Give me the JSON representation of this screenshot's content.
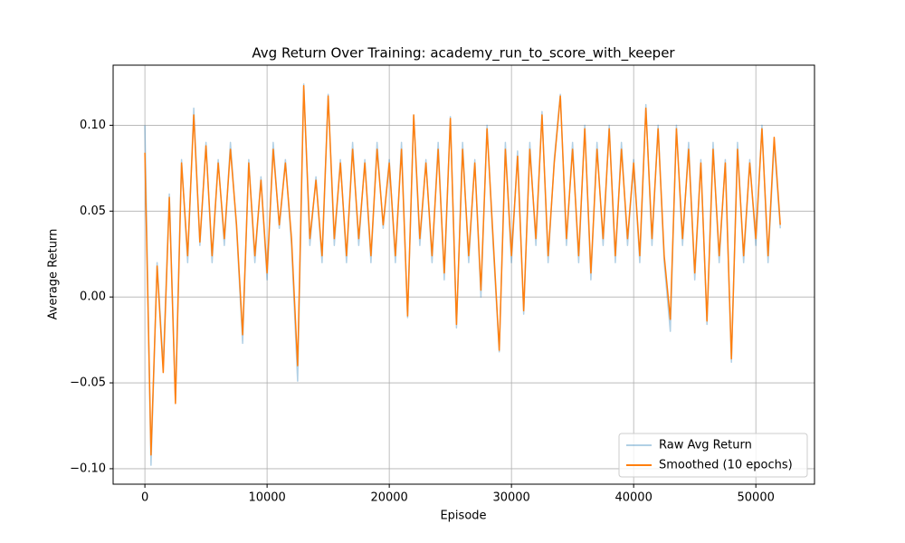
{
  "chart_data": {
    "type": "line",
    "title": "Avg Return Over Training: academy_run_to_score_with_keeper",
    "xlabel": "Episode",
    "ylabel": "Average Return",
    "x": [
      0,
      500,
      1000,
      1500,
      2000,
      2500,
      3000,
      3500,
      4000,
      4500,
      5000,
      5500,
      6000,
      6500,
      7000,
      7500,
      8000,
      8500,
      9000,
      9500,
      10000,
      10500,
      11000,
      11500,
      12000,
      12500,
      13000,
      13500,
      14000,
      14500,
      15000,
      15500,
      16000,
      16500,
      17000,
      17500,
      18000,
      18500,
      19000,
      19500,
      20000,
      20500,
      21000,
      21500,
      22000,
      22500,
      23000,
      23500,
      24000,
      24500,
      25000,
      25500,
      26000,
      26500,
      27000,
      27500,
      28000,
      28500,
      29000,
      29500,
      30000,
      30500,
      31000,
      31500,
      32000,
      32500,
      33000,
      33500,
      34000,
      34500,
      35000,
      35500,
      36000,
      36500,
      37000,
      37500,
      38000,
      38500,
      39000,
      39500,
      40000,
      40500,
      41000,
      41500,
      42000,
      42500,
      43000,
      43500,
      44000,
      44500,
      45000,
      45500,
      46000,
      46500,
      47000,
      47500,
      48000,
      48500,
      49000,
      49500,
      50000,
      50500,
      51000,
      51500,
      52000
    ],
    "series": [
      {
        "name": "Raw Avg Return",
        "color": "#1f77b4",
        "opacity": 0.35,
        "values": [
          0.1,
          -0.098,
          0.02,
          -0.04,
          0.06,
          -0.06,
          0.08,
          0.02,
          0.11,
          0.03,
          0.09,
          0.02,
          0.08,
          0.03,
          0.09,
          0.04,
          -0.027,
          0.08,
          0.02,
          0.07,
          0.01,
          0.09,
          0.04,
          0.08,
          0.03,
          -0.049,
          0.124,
          0.03,
          0.07,
          0.02,
          0.118,
          0.03,
          0.08,
          0.02,
          0.09,
          0.03,
          0.08,
          0.02,
          0.09,
          0.04,
          0.08,
          0.02,
          0.09,
          -0.012,
          0.106,
          0.03,
          0.08,
          0.02,
          0.09,
          0.01,
          0.105,
          -0.018,
          0.09,
          0.02,
          0.08,
          0.0,
          0.1,
          0.03,
          -0.032,
          0.09,
          0.02,
          0.085,
          -0.01,
          0.09,
          0.03,
          0.108,
          0.02,
          0.08,
          0.118,
          0.03,
          0.09,
          0.02,
          0.1,
          0.01,
          0.09,
          0.03,
          0.1,
          0.02,
          0.09,
          0.03,
          0.08,
          0.02,
          0.112,
          0.03,
          0.1,
          0.02,
          -0.02,
          0.1,
          0.03,
          0.09,
          0.01,
          0.08,
          -0.016,
          0.09,
          0.02,
          0.08,
          -0.038,
          0.09,
          0.02,
          0.08,
          0.03,
          0.1,
          0.02,
          0.09,
          0.04
        ]
      },
      {
        "name": "Smoothed (10 epochs)",
        "color": "#ff7f0e",
        "opacity": 1,
        "values": [
          0.084,
          -0.092,
          0.018,
          -0.044,
          0.058,
          -0.062,
          0.078,
          0.024,
          0.106,
          0.032,
          0.088,
          0.024,
          0.078,
          0.034,
          0.086,
          0.042,
          -0.022,
          0.078,
          0.024,
          0.068,
          0.014,
          0.086,
          0.042,
          0.078,
          0.034,
          -0.04,
          0.123,
          0.034,
          0.068,
          0.024,
          0.117,
          0.034,
          0.078,
          0.024,
          0.086,
          0.034,
          0.078,
          0.024,
          0.086,
          0.042,
          0.078,
          0.024,
          0.086,
          -0.011,
          0.106,
          0.034,
          0.078,
          0.024,
          0.086,
          0.014,
          0.104,
          -0.016,
          0.086,
          0.024,
          0.078,
          0.004,
          0.098,
          0.034,
          -0.031,
          0.086,
          0.024,
          0.082,
          -0.008,
          0.086,
          0.034,
          0.106,
          0.024,
          0.078,
          0.117,
          0.034,
          0.086,
          0.024,
          0.098,
          0.014,
          0.086,
          0.034,
          0.098,
          0.024,
          0.086,
          0.034,
          0.078,
          0.024,
          0.11,
          0.034,
          0.098,
          0.024,
          -0.013,
          0.098,
          0.034,
          0.086,
          0.014,
          0.078,
          -0.014,
          0.086,
          0.024,
          0.078,
          -0.036,
          0.086,
          0.024,
          0.078,
          0.034,
          0.098,
          0.024,
          0.093,
          0.042
        ]
      }
    ],
    "xlim": [
      -2600,
      54800
    ],
    "ylim": [
      -0.109,
      0.135
    ],
    "xticks": [
      0,
      10000,
      20000,
      30000,
      40000,
      50000
    ],
    "yticks": [
      {
        "value": -0.1,
        "label": "−0.10"
      },
      {
        "value": -0.05,
        "label": "−0.05"
      },
      {
        "value": 0,
        "label": "0.00"
      },
      {
        "value": 0.05,
        "label": "0.05"
      },
      {
        "value": 0.1,
        "label": "0.10"
      }
    ],
    "grid": true,
    "legend": "lower right"
  }
}
